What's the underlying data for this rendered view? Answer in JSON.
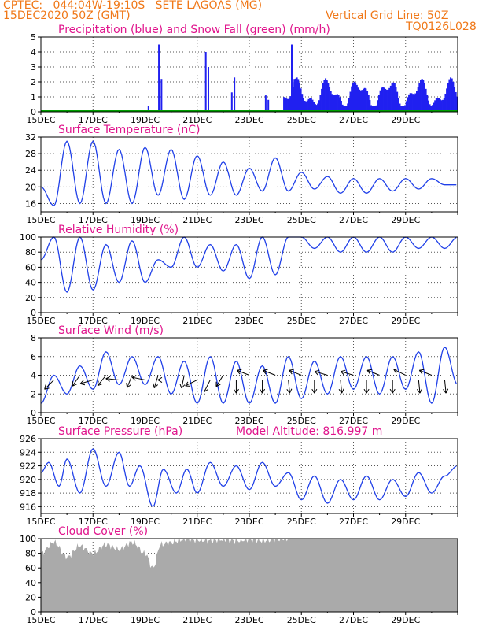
{
  "header": {
    "line1": "CPTEC:   044:04W-19:10S   SETE LAGOAS (MG)",
    "line2": "15DEC2020 50Z (GMT)",
    "grid_note": "Vertical Grid Line: 50Z",
    "model": "TQ0126L028",
    "color": "#f07818"
  },
  "x_dates": [
    "15DEC",
    "17DEC",
    "19DEC",
    "21DEC",
    "23DEC",
    "25DEC",
    "27DEC",
    "29DEC"
  ],
  "colors": {
    "title": "#e0148c",
    "line": "#2040e8",
    "precip": "#2020f0",
    "snow": "#00a000",
    "cloud": "#aaaaaa"
  },
  "chart_data": [
    {
      "id": "precip",
      "type": "bar",
      "title": "Precipitation (blue) and Snow Fall (green) (mm/h)",
      "ylim": [
        0,
        5
      ],
      "yticks": [
        0,
        1,
        2,
        3,
        4,
        5
      ],
      "note": "Hourly precipitation; sparse showers 19-21DEC, persistent 1-2 mm/h rain from 24DEC onward.",
      "peaks": [
        {
          "day": 4.1,
          "value": 0.4
        },
        {
          "day": 4.5,
          "value": 4.5
        },
        {
          "day": 4.6,
          "value": 2.2
        },
        {
          "day": 6.3,
          "value": 4.0
        },
        {
          "day": 6.4,
          "value": 3.0
        },
        {
          "day": 7.3,
          "value": 1.3
        },
        {
          "day": 7.4,
          "value": 2.3
        },
        {
          "day": 8.6,
          "value": 1.1
        },
        {
          "day": 8.7,
          "value": 0.8
        },
        {
          "day": 9.6,
          "value": 4.5
        },
        {
          "day": 9.7,
          "value": 2.2
        }
      ],
      "snow": 0.0
    },
    {
      "id": "temp",
      "type": "line",
      "title": "Surface Temperature (nC)",
      "ylim": [
        14,
        32
      ],
      "yticks": [
        16,
        20,
        24,
        28,
        32
      ],
      "keypoints": [
        [
          0,
          20
        ],
        [
          0.5,
          15.5
        ],
        [
          1,
          31
        ],
        [
          1.5,
          16
        ],
        [
          2,
          31
        ],
        [
          2.5,
          16
        ],
        [
          3,
          29
        ],
        [
          3.5,
          16
        ],
        [
          4,
          29.5
        ],
        [
          4.5,
          18
        ],
        [
          5,
          29
        ],
        [
          5.5,
          17
        ],
        [
          6,
          27.5
        ],
        [
          6.5,
          18
        ],
        [
          7,
          26
        ],
        [
          7.5,
          18
        ],
        [
          8,
          24.5
        ],
        [
          8.5,
          19
        ],
        [
          9,
          27
        ],
        [
          9.5,
          19
        ],
        [
          10,
          23.5
        ],
        [
          10.5,
          19.5
        ],
        [
          11,
          22.5
        ],
        [
          11.5,
          18.5
        ],
        [
          12,
          22
        ],
        [
          12.5,
          18.5
        ],
        [
          13,
          22
        ],
        [
          13.5,
          19
        ],
        [
          14,
          22
        ],
        [
          14.5,
          19.5
        ],
        [
          15,
          22
        ],
        [
          15.5,
          20.5
        ],
        [
          16,
          20.5
        ]
      ]
    },
    {
      "id": "rh",
      "type": "line",
      "title": "Relative Humidity (%)",
      "ylim": [
        0,
        100
      ],
      "yticks": [
        0,
        20,
        40,
        60,
        80,
        100
      ],
      "keypoints": [
        [
          0,
          70
        ],
        [
          0.5,
          100
        ],
        [
          1,
          27
        ],
        [
          1.5,
          100
        ],
        [
          2,
          30
        ],
        [
          2.5,
          90
        ],
        [
          3,
          40
        ],
        [
          3.5,
          95
        ],
        [
          4,
          40
        ],
        [
          4.5,
          70
        ],
        [
          5,
          60
        ],
        [
          5.5,
          100
        ],
        [
          6,
          60
        ],
        [
          6.5,
          90
        ],
        [
          7,
          55
        ],
        [
          7.5,
          90
        ],
        [
          8,
          45
        ],
        [
          8.5,
          100
        ],
        [
          9,
          50
        ],
        [
          9.5,
          100
        ],
        [
          10,
          100
        ],
        [
          10.5,
          85
        ],
        [
          11,
          100
        ],
        [
          11.5,
          80
        ],
        [
          12,
          100
        ],
        [
          12.5,
          80
        ],
        [
          13,
          100
        ],
        [
          13.5,
          80
        ],
        [
          14,
          100
        ],
        [
          14.5,
          85
        ],
        [
          15,
          100
        ],
        [
          15.5,
          85
        ],
        [
          16,
          100
        ]
      ]
    },
    {
      "id": "wind",
      "type": "line",
      "title": "Surface Wind (m/s)",
      "ylim": [
        0,
        8
      ],
      "yticks": [
        0,
        2,
        4,
        6,
        8
      ],
      "keypoints": [
        [
          0,
          1
        ],
        [
          0.5,
          4
        ],
        [
          1,
          2
        ],
        [
          1.5,
          5
        ],
        [
          2,
          2.5
        ],
        [
          2.5,
          6.5
        ],
        [
          3,
          3
        ],
        [
          3.5,
          6
        ],
        [
          4,
          3
        ],
        [
          4.5,
          6
        ],
        [
          5,
          2
        ],
        [
          5.5,
          5.5
        ],
        [
          6,
          1
        ],
        [
          6.5,
          6
        ],
        [
          7,
          1
        ],
        [
          7.5,
          5.5
        ],
        [
          8,
          1
        ],
        [
          8.5,
          5
        ],
        [
          9,
          1
        ],
        [
          9.5,
          6
        ],
        [
          10,
          1.5
        ],
        [
          10.5,
          5.5
        ],
        [
          11,
          2
        ],
        [
          11.5,
          6
        ],
        [
          12,
          2.5
        ],
        [
          12.5,
          6
        ],
        [
          13,
          2
        ],
        [
          13.5,
          6
        ],
        [
          14,
          2.5
        ],
        [
          14.5,
          6.5
        ],
        [
          15,
          1
        ],
        [
          15.5,
          7
        ],
        [
          16,
          3
        ]
      ],
      "vectors": [
        {
          "day": 0.5,
          "spd": 3.5,
          "u": -1,
          "v": -1
        },
        {
          "day": 1.5,
          "spd": 4,
          "u": -0.7,
          "v": -1
        },
        {
          "day": 2,
          "spd": 3.5,
          "u": -1,
          "v": -0.3
        },
        {
          "day": 2.5,
          "spd": 4,
          "u": -0.8,
          "v": -1
        },
        {
          "day": 3,
          "spd": 3.5,
          "u": -1,
          "v": 0.1
        },
        {
          "day": 3.5,
          "spd": 4,
          "u": -0.4,
          "v": -1
        },
        {
          "day": 4,
          "spd": 3.5,
          "u": -1,
          "v": 0.2
        },
        {
          "day": 4.5,
          "spd": 4,
          "u": -0.3,
          "v": -1
        },
        {
          "day": 5,
          "spd": 3.5,
          "u": -1,
          "v": 0
        },
        {
          "day": 5.5,
          "spd": 4,
          "u": -0.2,
          "v": -1
        },
        {
          "day": 6,
          "spd": 3.5,
          "u": -1,
          "v": -0.5
        },
        {
          "day": 6.5,
          "spd": 3.5,
          "u": -0.5,
          "v": -1
        },
        {
          "day": 7,
          "spd": 4,
          "u": -0.5,
          "v": -0.8
        },
        {
          "day": 7.5,
          "spd": 3.5,
          "u": 0,
          "v": -1
        },
        {
          "day": 8,
          "spd": 4,
          "u": -1,
          "v": 0.4
        },
        {
          "day": 8.5,
          "spd": 3.5,
          "u": 0,
          "v": -1
        },
        {
          "day": 9,
          "spd": 4,
          "u": -1,
          "v": 0.4
        },
        {
          "day": 9.5,
          "spd": 3.5,
          "u": 0.1,
          "v": -1
        },
        {
          "day": 10,
          "spd": 4,
          "u": -1,
          "v": 0.4
        },
        {
          "day": 10.5,
          "spd": 3.5,
          "u": 0,
          "v": -1
        },
        {
          "day": 11,
          "spd": 4,
          "u": -1,
          "v": 0.3
        },
        {
          "day": 11.5,
          "spd": 3.5,
          "u": 0.1,
          "v": -1
        },
        {
          "day": 12,
          "spd": 4,
          "u": -1,
          "v": 0.3
        },
        {
          "day": 12.5,
          "spd": 3.5,
          "u": 0,
          "v": -1
        },
        {
          "day": 13,
          "spd": 4,
          "u": -1,
          "v": 0.4
        },
        {
          "day": 13.5,
          "spd": 3.5,
          "u": 0,
          "v": -1
        },
        {
          "day": 14,
          "spd": 4,
          "u": -1,
          "v": 0.5
        },
        {
          "day": 14.5,
          "spd": 3.5,
          "u": 0.1,
          "v": -1
        },
        {
          "day": 15,
          "spd": 4,
          "u": -1,
          "v": 0.4
        },
        {
          "day": 15.5,
          "spd": 3.5,
          "u": 0.1,
          "v": -1
        }
      ]
    },
    {
      "id": "press",
      "type": "line",
      "title": "Surface Pressure (hPa)",
      "subtitle": "Model Altitude: 816.997 m",
      "ylim": [
        915,
        926
      ],
      "yticks": [
        916,
        918,
        920,
        922,
        924,
        926
      ],
      "keypoints": [
        [
          0,
          921
        ],
        [
          0.3,
          922.5
        ],
        [
          0.7,
          919
        ],
        [
          1,
          923
        ],
        [
          1.5,
          918
        ],
        [
          2,
          924.5
        ],
        [
          2.5,
          919
        ],
        [
          3,
          924
        ],
        [
          3.4,
          919
        ],
        [
          3.8,
          922
        ],
        [
          4.3,
          916
        ],
        [
          4.7,
          921.5
        ],
        [
          5.2,
          918
        ],
        [
          5.6,
          921.5
        ],
        [
          6,
          918
        ],
        [
          6.5,
          922.5
        ],
        [
          7,
          919
        ],
        [
          7.5,
          922
        ],
        [
          8,
          918.5
        ],
        [
          8.5,
          922.5
        ],
        [
          9,
          919
        ],
        [
          9.5,
          921
        ],
        [
          10,
          917
        ],
        [
          10.5,
          920.5
        ],
        [
          11,
          916.5
        ],
        [
          11.5,
          920
        ],
        [
          12,
          917
        ],
        [
          12.5,
          920.5
        ],
        [
          13,
          917
        ],
        [
          13.5,
          920
        ],
        [
          14,
          917.5
        ],
        [
          14.5,
          921
        ],
        [
          15,
          918
        ],
        [
          15.5,
          920.5
        ],
        [
          16,
          922
        ]
      ]
    },
    {
      "id": "cloud",
      "type": "area",
      "title": "Cloud Cover (%)",
      "ylim": [
        0,
        100
      ],
      "yticks": [
        0,
        20,
        40,
        60,
        80,
        100
      ],
      "keypoints": [
        [
          0,
          80
        ],
        [
          0.5,
          95
        ],
        [
          1,
          75
        ],
        [
          1.5,
          90
        ],
        [
          2,
          80
        ],
        [
          2.5,
          92
        ],
        [
          3,
          85
        ],
        [
          3.5,
          95
        ],
        [
          4,
          80
        ],
        [
          4.3,
          60
        ],
        [
          4.6,
          92
        ],
        [
          5,
          95
        ],
        [
          5.5,
          99
        ],
        [
          6,
          98
        ],
        [
          6.5,
          97
        ],
        [
          7,
          99
        ],
        [
          7.5,
          97
        ],
        [
          8,
          99
        ],
        [
          8.5,
          97
        ],
        [
          9,
          99
        ],
        [
          9.5,
          100
        ],
        [
          16,
          100
        ]
      ]
    }
  ]
}
